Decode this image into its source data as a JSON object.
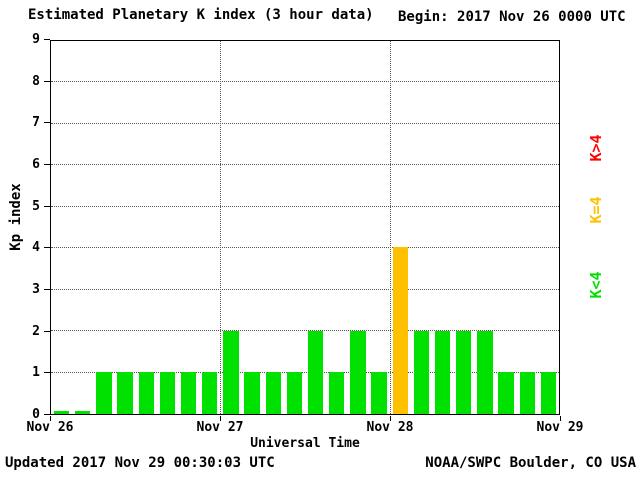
{
  "header": {
    "title": "Estimated Planetary K index (3 hour data)",
    "begin_label": "Begin:",
    "begin_value": "2017 Nov 26 0000 UTC"
  },
  "footer": {
    "updated": "Updated 2017 Nov 29 00:30:03 UTC",
    "source": "NOAA/SWPC Boulder, CO USA"
  },
  "legend": [
    {
      "label": "K>4",
      "color": "#ff0000"
    },
    {
      "label": "K=4",
      "color": "#ffc000"
    },
    {
      "label": "K<4",
      "color": "#00e100"
    }
  ],
  "chart_data": {
    "type": "bar",
    "title": "Estimated Planetary K index (3 hour data)",
    "xlabel": "Universal Time",
    "ylabel": "Kp index",
    "ylim": [
      0,
      9
    ],
    "y_ticks": [
      0,
      1,
      2,
      3,
      4,
      5,
      6,
      7,
      8,
      9
    ],
    "x_tick_labels": [
      "Nov 26",
      "Nov 27",
      "Nov 28",
      "Nov 29"
    ],
    "begin": "2017 Nov 26 0000 UTC",
    "interval_hours": 3,
    "values": [
      0,
      0,
      1,
      1,
      1,
      1,
      1,
      1,
      2,
      1,
      1,
      1,
      2,
      1,
      2,
      1,
      4,
      2,
      2,
      2,
      2,
      1,
      1,
      1
    ],
    "by_day": [
      {
        "date": "Nov 26",
        "values": [
          0,
          0,
          1,
          1,
          1,
          1,
          1,
          1
        ]
      },
      {
        "date": "Nov 27",
        "values": [
          2,
          1,
          1,
          1,
          2,
          1,
          2,
          1
        ]
      },
      {
        "date": "Nov 28",
        "values": [
          4,
          2,
          2,
          2,
          2,
          1,
          1,
          1
        ]
      }
    ],
    "bar_colors": {
      "k_lt_4": "#00e100",
      "k_eq_4": "#ffc000",
      "k_gt_4": "#ff0000"
    },
    "color_rule": "K<4 green, K=4 yellow, K>4 red",
    "grid": {
      "horizontal": "dotted lines at each integer Kp",
      "vertical": "dotted lines at day boundaries Nov 27 and Nov 28"
    },
    "legend_position": "right, rotated"
  }
}
